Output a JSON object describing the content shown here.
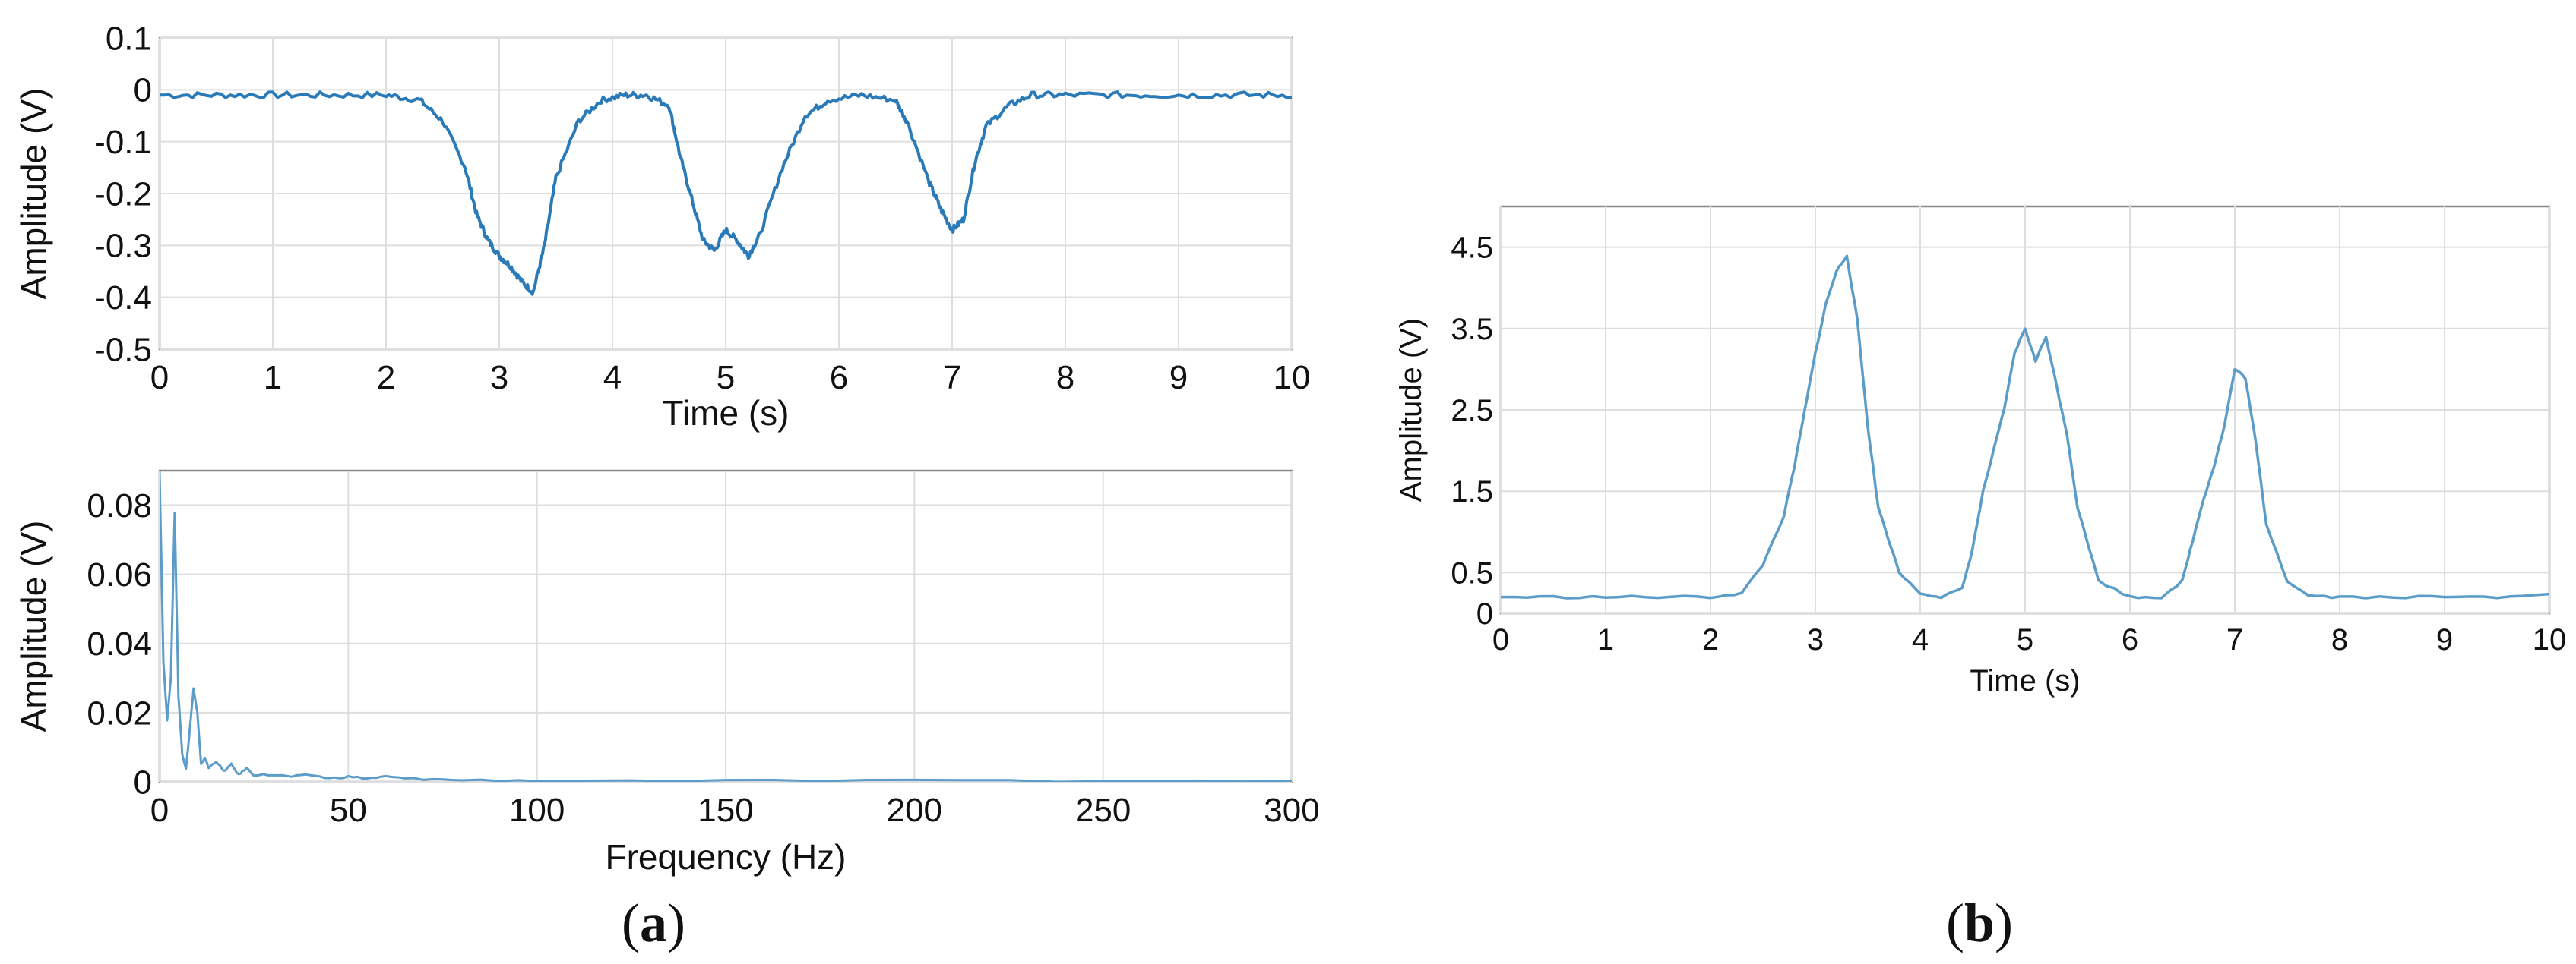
{
  "colors": {
    "signal": "#2a7ab8",
    "signal_light": "#5b9cc8",
    "grid": "#dedede",
    "axis": "#888888",
    "text": "#111111"
  },
  "panel_labels": {
    "a_open": "(",
    "a_letter": "a",
    "a_close": ")",
    "b_open": "(",
    "b_letter": "b",
    "b_close": ")"
  },
  "chart_data": [
    {
      "id": "a-time",
      "type": "line",
      "xlabel": "Time (s)",
      "ylabel": "Amplitude (V)",
      "xlim": [
        0,
        10
      ],
      "ylim": [
        -0.5,
        0.1
      ],
      "xticks": [
        0,
        1,
        2,
        3,
        4,
        5,
        6,
        7,
        8,
        9,
        10
      ],
      "yticks": [
        0.1,
        0,
        -0.1,
        -0.2,
        -0.3,
        -0.4,
        -0.5
      ],
      "ytick_labels": [
        "0.1",
        "0",
        "-0.1",
        "-0.2",
        "-0.3",
        "-0.4",
        "-0.5"
      ],
      "grid": true,
      "series": [
        {
          "x": [
            0,
            0.5,
            1,
            1.5,
            2,
            2.3,
            2.5,
            2.7,
            2.8,
            2.9,
            3.0,
            3.1,
            3.2,
            3.3,
            3.4,
            3.5,
            3.7,
            3.9,
            4.1,
            4.3,
            4.5,
            4.6,
            4.7,
            4.8,
            4.9,
            5.0,
            5.1,
            5.2,
            5.3,
            5.5,
            5.7,
            5.9,
            6.2,
            6.5,
            6.6,
            6.8,
            6.9,
            7.0,
            7.1,
            7.2,
            7.3,
            7.5,
            7.7,
            8.0,
            8.5,
            9.0,
            9.5,
            10
          ],
          "y": [
            -0.01,
            -0.01,
            -0.01,
            -0.01,
            -0.01,
            -0.02,
            -0.06,
            -0.15,
            -0.24,
            -0.29,
            -0.32,
            -0.34,
            -0.37,
            -0.39,
            -0.3,
            -0.17,
            -0.06,
            -0.02,
            -0.01,
            -0.01,
            -0.03,
            -0.13,
            -0.21,
            -0.29,
            -0.31,
            -0.27,
            -0.29,
            -0.32,
            -0.28,
            -0.15,
            -0.05,
            -0.02,
            -0.01,
            -0.02,
            -0.06,
            -0.18,
            -0.23,
            -0.27,
            -0.25,
            -0.14,
            -0.07,
            -0.03,
            -0.01,
            -0.01,
            -0.01,
            -0.01,
            -0.01,
            -0.01
          ]
        }
      ]
    },
    {
      "id": "a-freq",
      "type": "line",
      "xlabel": "Frequency (Hz)",
      "ylabel": "Amplitude (V)",
      "xlim": [
        0,
        300
      ],
      "ylim": [
        0,
        0.09
      ],
      "xticks": [
        0,
        50,
        100,
        150,
        200,
        250,
        300
      ],
      "yticks": [
        0,
        0.02,
        0.04,
        0.06,
        0.08
      ],
      "ytick_labels": [
        "0",
        "0.02",
        "0.04",
        "0.06",
        "0.08"
      ],
      "grid": true,
      "series": [
        {
          "x": [
            0,
            1,
            2,
            3,
            4,
            5,
            6,
            7,
            8,
            9,
            10,
            11,
            12,
            13,
            15,
            17,
            19,
            21,
            23,
            25,
            30,
            35,
            40,
            45,
            50,
            55,
            60,
            65,
            70,
            80,
            100,
            150,
            200,
            250,
            300
          ],
          "y": [
            0.09,
            0.035,
            0.018,
            0.03,
            0.078,
            0.025,
            0.008,
            0.004,
            0.015,
            0.027,
            0.02,
            0.005,
            0.007,
            0.004,
            0.006,
            0.003,
            0.005,
            0.002,
            0.004,
            0.002,
            0.002,
            0.0015,
            0.002,
            0.001,
            0.0015,
            0.001,
            0.0015,
            0.001,
            0.0008,
            0.0005,
            0.0004,
            0.0003,
            0.0003,
            0.0002,
            0.0002
          ]
        }
      ]
    },
    {
      "id": "b-time",
      "type": "line",
      "xlabel": "Time (s)",
      "ylabel": "Amplitude (V)",
      "xlim": [
        0,
        10
      ],
      "ylim": [
        0,
        5.0
      ],
      "xticks": [
        0,
        1,
        2,
        3,
        4,
        5,
        6,
        7,
        8,
        9,
        10
      ],
      "yticks": [
        0,
        0.5,
        1.5,
        2.5,
        3.5,
        4.5
      ],
      "ytick_labels": [
        "0",
        "0.5",
        "1.5",
        "2.5",
        "3.5",
        "4.5"
      ],
      "grid": true,
      "series": [
        {
          "x": [
            0,
            0.5,
            1,
            1.5,
            2,
            2.3,
            2.5,
            2.7,
            2.8,
            2.9,
            3.0,
            3.1,
            3.2,
            3.3,
            3.4,
            3.5,
            3.6,
            3.8,
            4.0,
            4.2,
            4.4,
            4.5,
            4.6,
            4.7,
            4.8,
            4.9,
            5.0,
            5.1,
            5.2,
            5.3,
            5.4,
            5.5,
            5.7,
            6.0,
            6.3,
            6.5,
            6.6,
            6.7,
            6.8,
            6.9,
            7.0,
            7.1,
            7.2,
            7.3,
            7.5,
            7.7,
            8.0,
            8.5,
            9.0,
            9.5,
            10
          ],
          "y": [
            0.2,
            0.2,
            0.2,
            0.2,
            0.2,
            0.25,
            0.6,
            1.2,
            1.8,
            2.5,
            3.2,
            3.8,
            4.2,
            4.4,
            3.6,
            2.3,
            1.3,
            0.5,
            0.25,
            0.2,
            0.3,
            0.8,
            1.5,
            2.0,
            2.5,
            3.2,
            3.5,
            3.1,
            3.4,
            2.8,
            2.2,
            1.3,
            0.4,
            0.2,
            0.2,
            0.4,
            0.9,
            1.4,
            1.8,
            2.3,
            3.0,
            2.9,
            2.1,
            1.1,
            0.4,
            0.22,
            0.2,
            0.2,
            0.2,
            0.2,
            0.25
          ]
        }
      ]
    }
  ]
}
